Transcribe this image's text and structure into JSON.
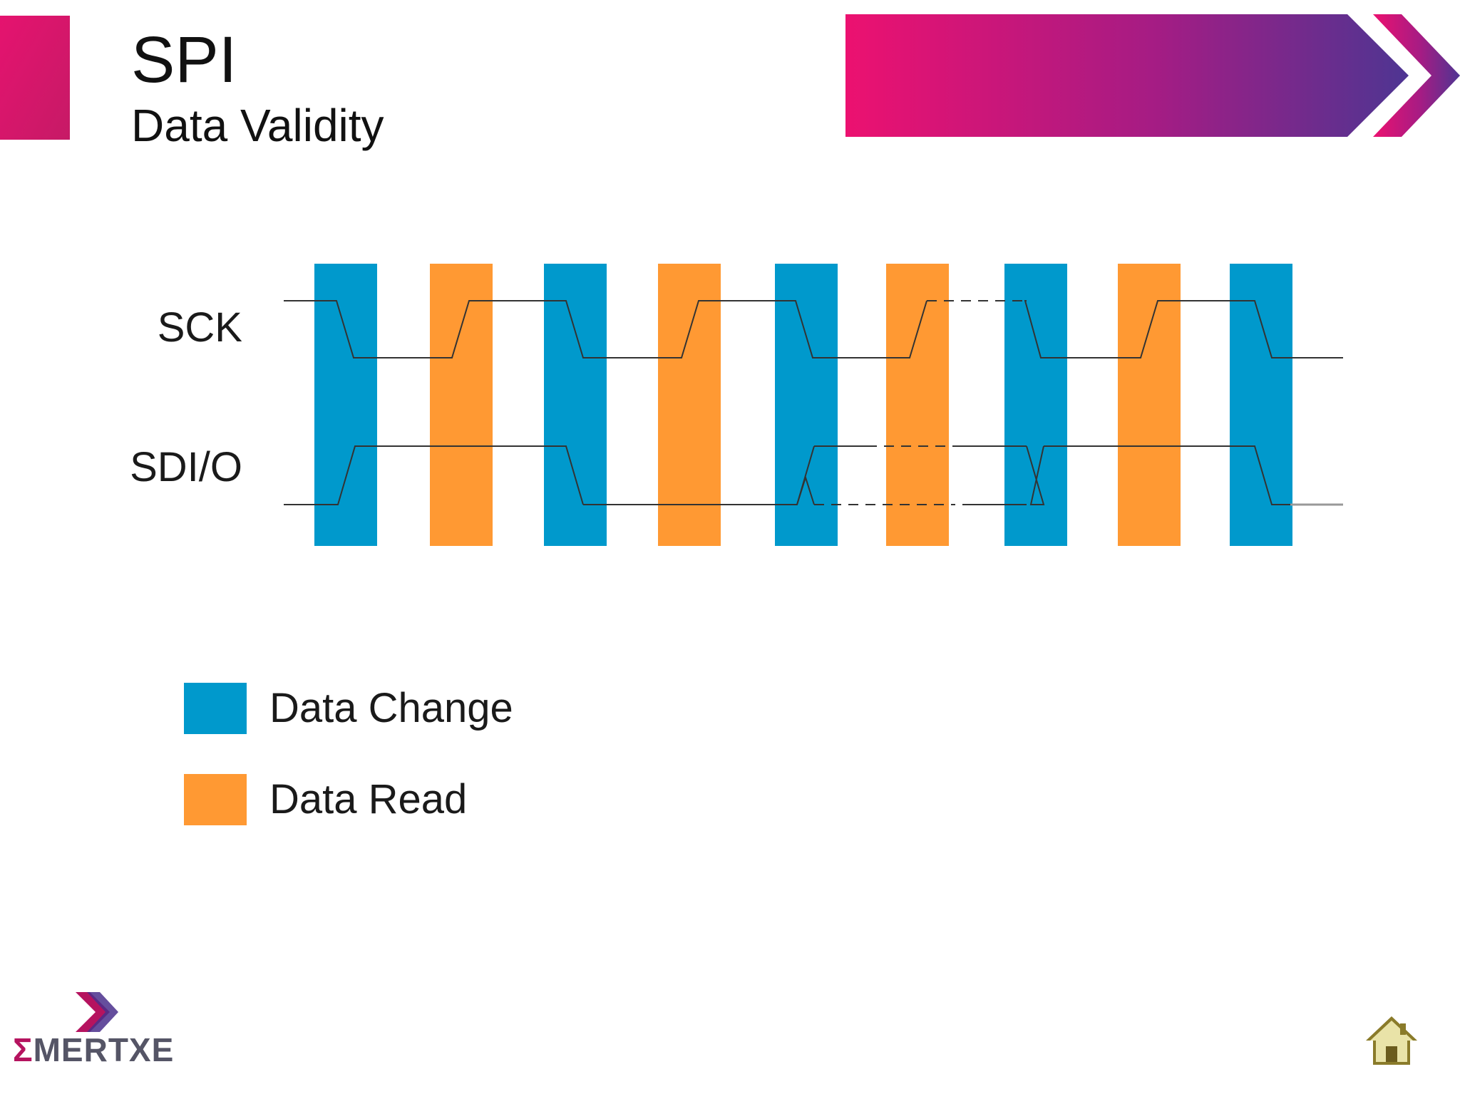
{
  "header": {
    "title": "SPI",
    "subtitle": "Data Validity"
  },
  "diagram": {
    "signals": [
      "SCK",
      "SDI/O"
    ],
    "legend": [
      {
        "label": "Data Change",
        "color": "#0099cc"
      },
      {
        "label": "Data Read",
        "color": "#ff9933"
      }
    ],
    "bar_sequence": [
      "change",
      "read",
      "change",
      "read",
      "change",
      "read",
      "change",
      "read",
      "change"
    ]
  },
  "colors": {
    "accent_pink": "#e5136f",
    "accent_purple": "#5a3391",
    "trace": "#333333"
  },
  "footer": {
    "logo_sigma": "Σ",
    "logo_text": "MERTXE",
    "home_icon": "home-icon"
  }
}
